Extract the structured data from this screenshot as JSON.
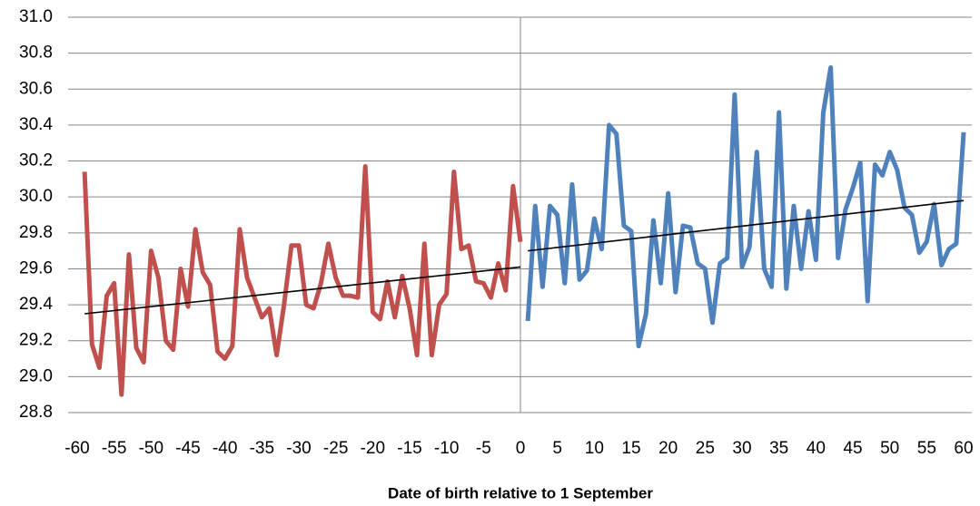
{
  "chart_data": {
    "type": "line",
    "xlabel": "Date of birth relative to 1 September",
    "xlim": [
      -60,
      60
    ],
    "xticks": [
      -60,
      -55,
      -50,
      -45,
      -40,
      -35,
      -30,
      -25,
      -20,
      -15,
      -10,
      -5,
      0,
      5,
      10,
      15,
      20,
      25,
      30,
      35,
      40,
      45,
      50,
      55,
      60
    ],
    "ylim": [
      28.8,
      31.0
    ],
    "yticks": [
      28.8,
      {
        "value": 29,
        "label": "29.0"
      },
      29.2,
      29.4,
      29.6,
      29.8,
      {
        "value": 30,
        "label": "30.0"
      },
      30.2,
      30.4,
      30.6,
      30.8,
      {
        "value": 31,
        "label": "31.0"
      }
    ],
    "grid": true,
    "series": [
      {
        "color": "#c0504d",
        "x": [
          -59,
          -58,
          -57,
          -56,
          -55,
          -54,
          -53,
          -52,
          -51,
          -50,
          -49,
          -48,
          -47,
          -46,
          -45,
          -44,
          -43,
          -42,
          -41,
          -40,
          -39,
          -38,
          -37,
          -36,
          -35,
          -34,
          -33,
          -32,
          -31,
          -30,
          -29,
          -28,
          -27,
          -26,
          -25,
          -24,
          -23,
          -22,
          -21,
          -20,
          -19,
          -18,
          -17,
          -16,
          -15,
          -14,
          -13,
          -12,
          -11,
          -10,
          -9,
          -8,
          -7,
          -6,
          -5,
          -4,
          -3,
          -2,
          -1,
          0
        ],
        "values": [
          30.14,
          29.18,
          29.05,
          29.45,
          29.52,
          28.9,
          29.68,
          29.16,
          29.08,
          29.7,
          29.55,
          29.2,
          29.15,
          29.6,
          29.39,
          29.82,
          29.58,
          29.51,
          29.14,
          29.1,
          29.17,
          29.82,
          29.55,
          29.44,
          29.33,
          29.38,
          29.12,
          29.4,
          29.73,
          29.73,
          29.4,
          29.38,
          29.52,
          29.74,
          29.55,
          29.45,
          29.45,
          29.44,
          30.17,
          29.36,
          29.32,
          29.53,
          29.33,
          29.56,
          29.38,
          29.12,
          29.74,
          29.12,
          29.4,
          29.46,
          30.14,
          29.71,
          29.73,
          29.53,
          29.52,
          29.44,
          29.63,
          29.48,
          30.06,
          29.75
        ]
      },
      {
        "color": "#4f81bd",
        "x": [
          1,
          2,
          3,
          4,
          5,
          6,
          7,
          8,
          9,
          10,
          11,
          12,
          13,
          14,
          15,
          16,
          17,
          18,
          19,
          20,
          21,
          22,
          23,
          24,
          25,
          26,
          27,
          28,
          29,
          30,
          31,
          32,
          33,
          34,
          35,
          36,
          37,
          38,
          39,
          40,
          41,
          42,
          43,
          44,
          45,
          46,
          47,
          48,
          49,
          50,
          51,
          52,
          53,
          54,
          55,
          56,
          57,
          58,
          59,
          60
        ],
        "values": [
          29.31,
          29.95,
          29.5,
          29.95,
          29.9,
          29.52,
          30.07,
          29.54,
          29.59,
          29.88,
          29.71,
          30.4,
          30.35,
          29.84,
          29.81,
          29.17,
          29.35,
          29.87,
          29.52,
          30.02,
          29.47,
          29.84,
          29.83,
          29.63,
          29.6,
          29.3,
          29.63,
          29.66,
          30.57,
          29.61,
          29.72,
          30.25,
          29.6,
          29.5,
          30.47,
          29.49,
          29.95,
          29.6,
          29.92,
          29.65,
          30.47,
          30.72,
          29.66,
          29.93,
          30.05,
          30.19,
          29.42,
          30.18,
          30.12,
          30.25,
          30.15,
          29.94,
          29.9,
          29.69,
          29.75,
          29.96,
          29.62,
          29.71,
          29.74,
          30.36
        ]
      },
      {
        "color": "#000000",
        "x": [
          -59,
          0
        ],
        "values": [
          29.35,
          29.61
        ]
      },
      {
        "color": "#000000",
        "x": [
          1,
          60
        ],
        "values": [
          29.7,
          29.98
        ]
      }
    ]
  }
}
